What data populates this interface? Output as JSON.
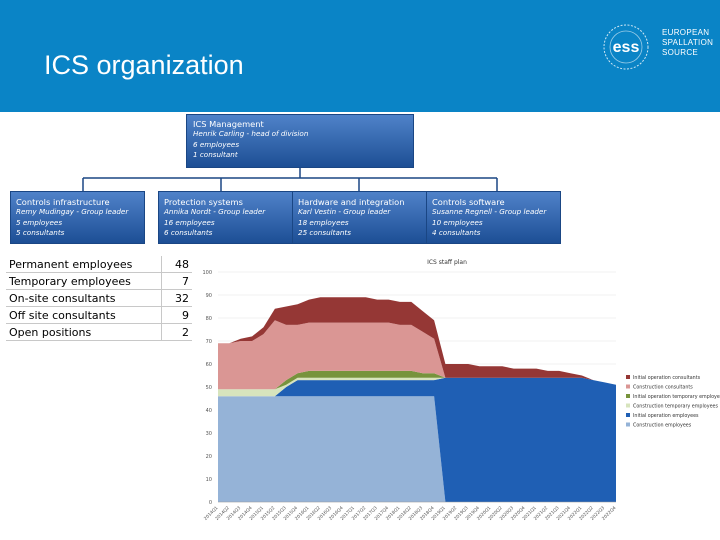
{
  "header": {
    "title": "ICS organization",
    "logo_text": [
      "EUROPEAN",
      "SPALLATION",
      "SOURCE"
    ],
    "logo_mark": "ess",
    "background": "#0a84c6"
  },
  "org": {
    "management": {
      "name": "ICS Management",
      "lines": [
        "Henrik Carling - head of division",
        "6 employees",
        "1 consultant"
      ]
    },
    "groups": [
      {
        "name": "Controls infrastructure",
        "lines": [
          "Remy Mudingay - Group leader",
          "5 employees",
          "5 consultants"
        ]
      },
      {
        "name": "Protection systems",
        "lines": [
          "Annika Nordt - Group leader",
          "16 employees",
          "6 consultants"
        ]
      },
      {
        "name": "Hardware and integration",
        "lines": [
          "Karl Vestin - Group leader",
          "18 employees",
          "25 consultants"
        ]
      },
      {
        "name": "Controls software",
        "lines": [
          "Susanne Regnell - Group leader",
          "10 employees",
          "4 consultants"
        ]
      }
    ]
  },
  "stats": [
    {
      "label": "Permanent employees",
      "value": "48"
    },
    {
      "label": "Temporary employees",
      "value": "7"
    },
    {
      "label": "On-site consultants",
      "value": "32"
    },
    {
      "label": "Off site consultants",
      "value": "9"
    },
    {
      "label": "Open positions",
      "value": "2"
    }
  ],
  "chart_data": {
    "type": "area",
    "title": "ICS staff plan",
    "ylim": [
      0,
      100
    ],
    "yticks": [
      0,
      10,
      20,
      30,
      40,
      50,
      60,
      70,
      80,
      90,
      100
    ],
    "x": [
      "2014Q1",
      "2014Q2",
      "2014Q3",
      "2014Q4",
      "2015Q1",
      "2015Q2",
      "2015Q3",
      "2015Q4",
      "2016Q1",
      "2016Q2",
      "2016Q3",
      "2016Q4",
      "2017Q1",
      "2017Q2",
      "2017Q3",
      "2017Q4",
      "2018Q1",
      "2018Q2",
      "2018Q3",
      "2018Q4",
      "2019Q1",
      "2019Q2",
      "2019Q3",
      "2019Q4",
      "2020Q1",
      "2020Q2",
      "2020Q3",
      "2020Q4",
      "2021Q1",
      "2021Q2",
      "2021Q3",
      "2021Q4",
      "2022Q1",
      "2022Q2",
      "2022Q3",
      "2022Q4"
    ],
    "series": [
      {
        "name": "Construction employees",
        "color": "#95b3d7",
        "values": [
          46,
          46,
          46,
          46,
          46,
          46,
          46,
          46,
          46,
          46,
          46,
          46,
          46,
          46,
          46,
          46,
          46,
          46,
          46,
          46,
          0,
          0,
          0,
          0,
          0,
          0,
          0,
          0,
          0,
          0,
          0,
          0,
          0,
          0,
          0,
          0
        ]
      },
      {
        "name": "Initial operation employees",
        "color": "#1f5fb4",
        "values": [
          0,
          0,
          0,
          0,
          0,
          0,
          4,
          7,
          7,
          7,
          7,
          7,
          7,
          7,
          7,
          7,
          7,
          7,
          7,
          7,
          54,
          54,
          54,
          54,
          54,
          54,
          54,
          54,
          54,
          54,
          54,
          54,
          54,
          53,
          52,
          51
        ]
      },
      {
        "name": "Construction temporary employees",
        "color": "#d7e4bd",
        "values": [
          3,
          3,
          3,
          3,
          3,
          3,
          1,
          1,
          1,
          1,
          1,
          1,
          1,
          1,
          1,
          1,
          1,
          1,
          1,
          1,
          0,
          0,
          0,
          0,
          0,
          0,
          0,
          0,
          0,
          0,
          0,
          0,
          0,
          0,
          0,
          0
        ]
      },
      {
        "name": "Initial operation temporary employees",
        "color": "#77933c",
        "values": [
          0,
          0,
          0,
          0,
          0,
          0,
          2,
          2,
          3,
          3,
          3,
          3,
          3,
          3,
          3,
          3,
          3,
          3,
          2,
          2,
          0,
          0,
          0,
          0,
          0,
          0,
          0,
          0,
          0,
          0,
          0,
          0,
          0,
          0,
          0,
          0
        ]
      },
      {
        "name": "Construction consultants",
        "color": "#da9694",
        "values": [
          20,
          20,
          21,
          21,
          24,
          30,
          24,
          21,
          21,
          21,
          21,
          21,
          21,
          21,
          21,
          21,
          20,
          20,
          18,
          15,
          0,
          0,
          0,
          0,
          0,
          0,
          0,
          0,
          0,
          0,
          0,
          0,
          0,
          0,
          0,
          0
        ]
      },
      {
        "name": "Initial operation consultants",
        "color": "#953735",
        "values": [
          0,
          0,
          1,
          2,
          3,
          5,
          8,
          9,
          10,
          11,
          11,
          11,
          11,
          11,
          10,
          10,
          10,
          10,
          9,
          8,
          6,
          6,
          6,
          5,
          5,
          5,
          4,
          4,
          4,
          3,
          3,
          2,
          1,
          0,
          0,
          0
        ]
      }
    ],
    "legend_order": [
      "Initial operation consultants",
      "Construction consultants",
      "Initial operation temporary employees",
      "Construction temporary employees",
      "Initial operation employees",
      "Construction employees"
    ],
    "legend_position": "right"
  }
}
